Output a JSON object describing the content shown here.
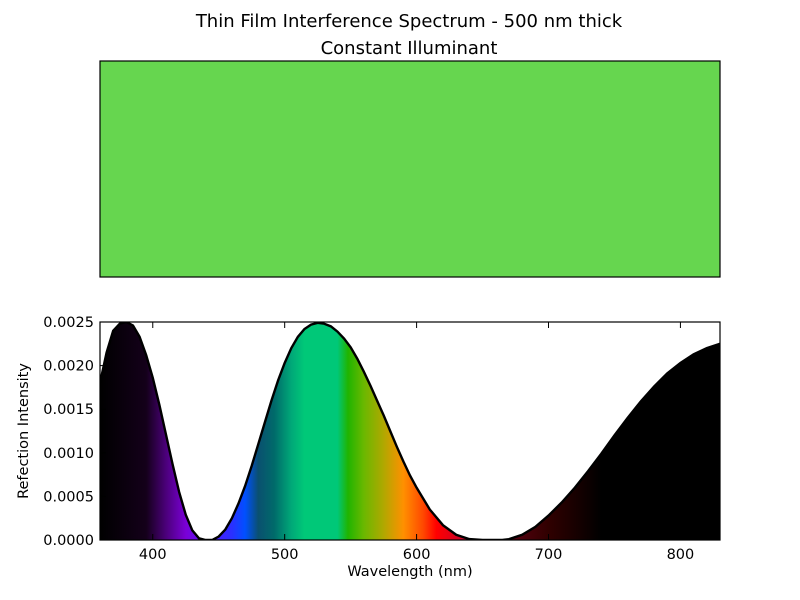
{
  "chart_data": [
    {
      "type": "swatch",
      "title": "Thin Film Interference Spectrum - 500 nm thick",
      "subtitle": "Constant Illuminant",
      "color": "#66d64f"
    },
    {
      "type": "area",
      "xlabel": "Wavelength (nm)",
      "ylabel": "Refection Intensity",
      "xlim": [
        360,
        830
      ],
      "ylim": [
        0,
        0.0025
      ],
      "xticks": [
        "400",
        "500",
        "600",
        "700",
        "800"
      ],
      "yticks": [
        "0.0000",
        "0.0005",
        "0.0010",
        "0.0015",
        "0.0020",
        "0.0025"
      ],
      "grid": false,
      "fill": "wavelength-colored spectrum",
      "series": [
        {
          "x": [
            360,
            365,
            370,
            375,
            380,
            385,
            390,
            395,
            400,
            405,
            410,
            415,
            420,
            425,
            430,
            435,
            440,
            443,
            445,
            450,
            455,
            460,
            465,
            470,
            475,
            480,
            485,
            490,
            495,
            500,
            505,
            510,
            515,
            520,
            525,
            530,
            535,
            540,
            545,
            550,
            555,
            560,
            565,
            570,
            575,
            580,
            585,
            590,
            595,
            600,
            610,
            620,
            630,
            640,
            650,
            660,
            665,
            670,
            680,
            690,
            700,
            710,
            720,
            730,
            740,
            750,
            760,
            770,
            780,
            790,
            800,
            810,
            820,
            830
          ],
          "y": [
            0.0018,
            0.00215,
            0.0024,
            0.00248,
            0.0025,
            0.00246,
            0.00233,
            0.00212,
            0.00186,
            0.00155,
            0.00121,
            0.00087,
            0.00055,
            0.00029,
            0.00011,
            2e-05,
            0.0,
            0.0,
            0.0,
            4e-05,
            0.00012,
            0.00025,
            0.00042,
            0.00062,
            0.00085,
            0.0011,
            0.00135,
            0.0016,
            0.00183,
            0.00203,
            0.0022,
            0.00233,
            0.00242,
            0.00247,
            0.00249,
            0.00248,
            0.00245,
            0.00239,
            0.00231,
            0.00221,
            0.00208,
            0.00193,
            0.00177,
            0.0016,
            0.00143,
            0.00125,
            0.00107,
            0.0009,
            0.00074,
            0.0006,
            0.00035,
            0.00017,
            6e-05,
            1e-05,
            0.0,
            0.0,
            0.0,
            1e-05,
            6e-05,
            0.00015,
            0.00028,
            0.00043,
            0.0006,
            0.00079,
            0.00099,
            0.0012,
            0.0014,
            0.00159,
            0.00176,
            0.00191,
            0.00203,
            0.00213,
            0.0022,
            0.00225
          ]
        }
      ]
    }
  ]
}
